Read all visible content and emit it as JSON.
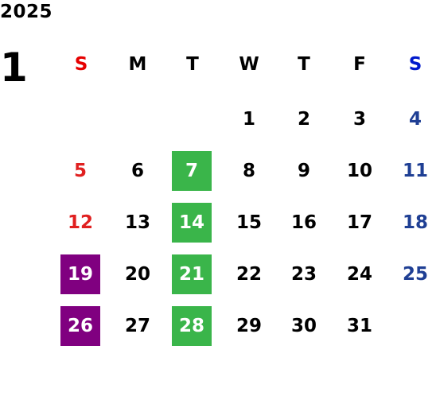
{
  "calendar": {
    "year": "2025",
    "month": "1",
    "weekdays": [
      "S",
      "M",
      "T",
      "W",
      "T",
      "F",
      "S"
    ],
    "weekday_colors": [
      "#e60000",
      "#000000",
      "#000000",
      "#000000",
      "#000000",
      "#000000",
      "#0019cc"
    ],
    "start_weekday": 3,
    "days": [
      "1",
      "2",
      "3",
      "4",
      "5",
      "6",
      "7",
      "8",
      "9",
      "10",
      "11",
      "12",
      "13",
      "14",
      "15",
      "16",
      "17",
      "18",
      "19",
      "20",
      "21",
      "22",
      "23",
      "24",
      "25",
      "26",
      "27",
      "28",
      "29",
      "30",
      "31"
    ],
    "colors": {
      "sunday": "#e02020",
      "saturday": "#1f3f94",
      "weekday": "#000000",
      "highlight_green": "#3ab54a",
      "highlight_purple": "#800080",
      "highlight_text": "#ffffff"
    },
    "highlights": {
      "green": [
        "7",
        "14",
        "21",
        "28"
      ],
      "purple": [
        "19",
        "26"
      ]
    }
  }
}
